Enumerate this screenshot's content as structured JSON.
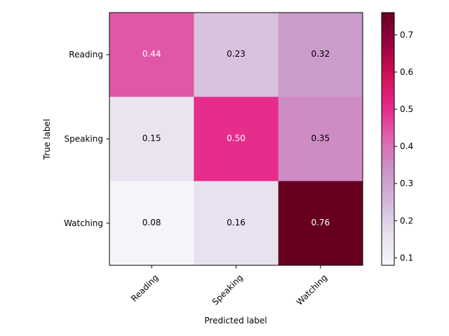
{
  "chart_data": {
    "type": "heatmap",
    "title": "",
    "xlabel": "Predicted label",
    "ylabel": "True label",
    "x_categories": [
      "Reading",
      "Speaking",
      "Watching"
    ],
    "y_categories": [
      "Reading",
      "Speaking",
      "Watching"
    ],
    "values": [
      [
        0.44,
        0.23,
        0.32
      ],
      [
        0.15,
        0.5,
        0.35
      ],
      [
        0.08,
        0.16,
        0.76
      ]
    ],
    "cell_labels": [
      [
        "0.44",
        "0.23",
        "0.32"
      ],
      [
        "0.15",
        "0.50",
        "0.35"
      ],
      [
        "0.08",
        "0.16",
        "0.76"
      ]
    ],
    "colormap": "PuRd",
    "colorbar_range": [
      0.08,
      0.76
    ],
    "colorbar_ticks": [
      "0.1",
      "0.2",
      "0.3",
      "0.4",
      "0.5",
      "0.6",
      "0.7"
    ],
    "text_colors": {
      "dark_cell": "#ffffff",
      "light_cell": "#000000"
    }
  }
}
